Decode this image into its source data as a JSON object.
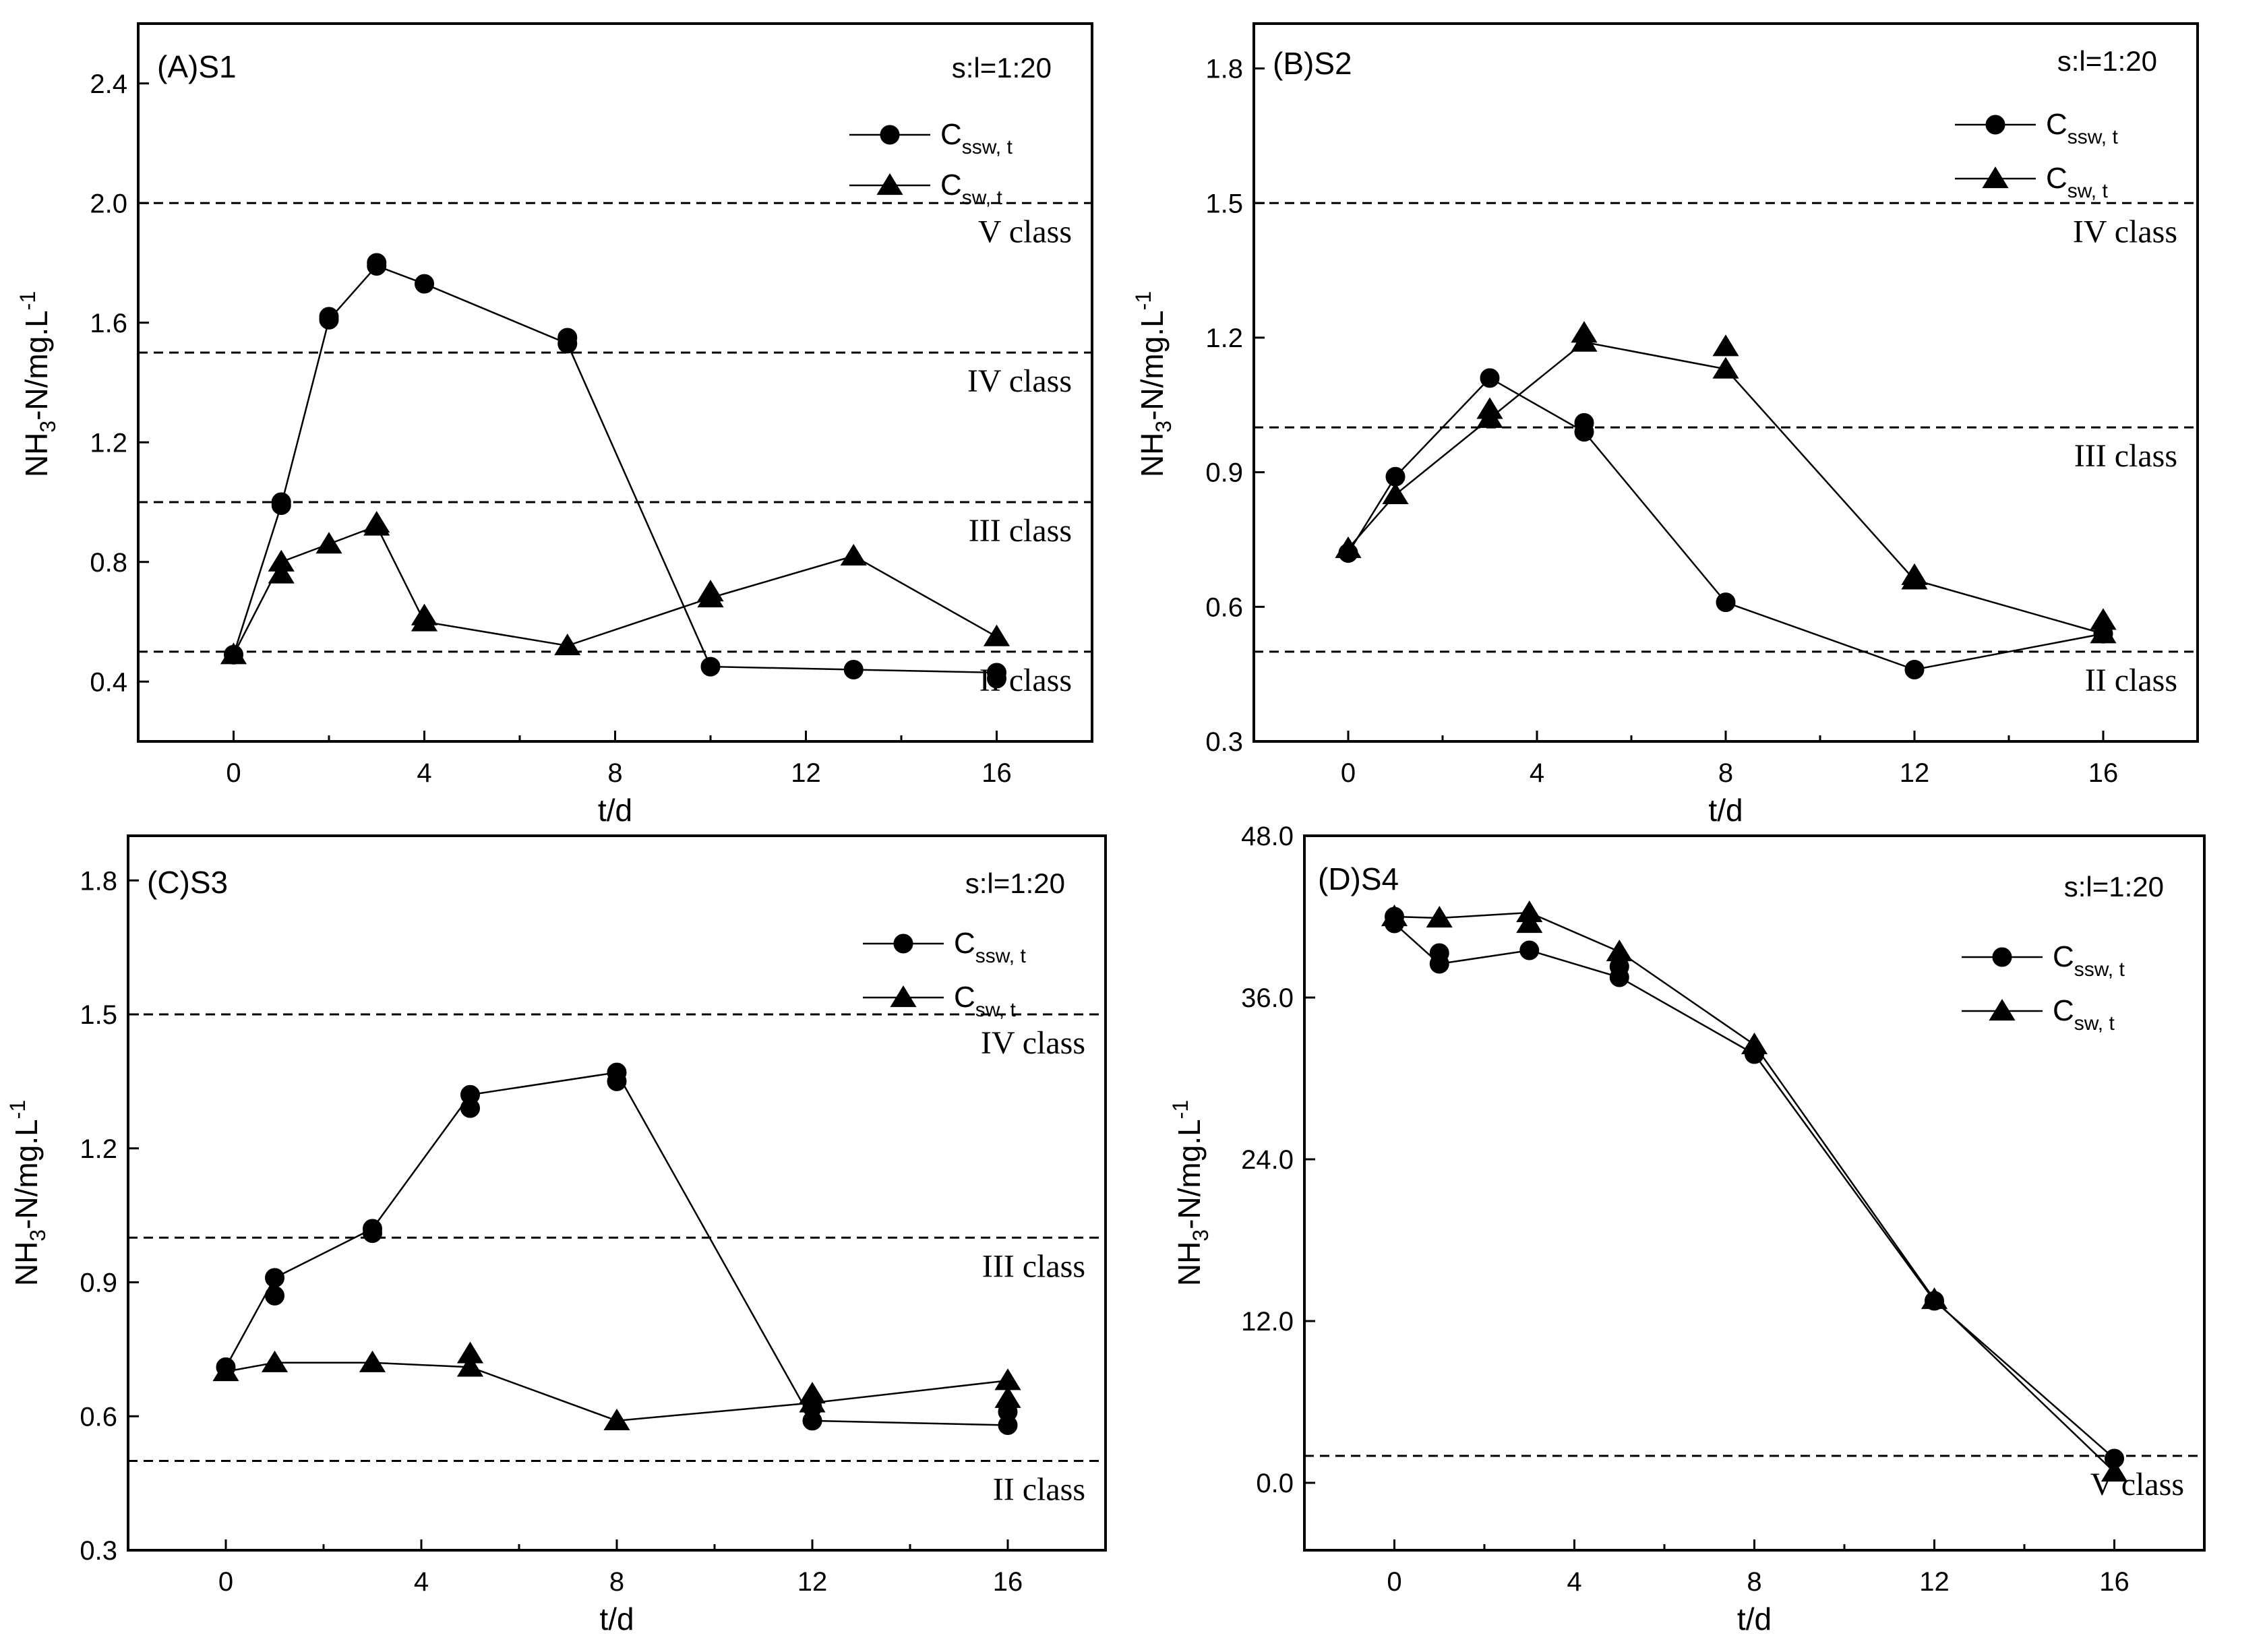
{
  "legend": {
    "ratio": "s:l=1:20",
    "series": [
      {
        "key": "ssw",
        "main": "C",
        "sub": "ssw, t",
        "marker": "circle"
      },
      {
        "key": "sw",
        "main": "C",
        "sub": "sw, t",
        "marker": "triangle"
      }
    ]
  },
  "axis_text": {
    "xlabel": "t/d",
    "ylabel_a": "NH",
    "ylabel_b": "3",
    "ylabel_c": "-N/mg.L",
    "ylabel_d": "-1"
  },
  "chart_data": [
    {
      "id": "A",
      "type": "line",
      "title": "(A)S1",
      "xlim": [
        -2,
        18
      ],
      "ylim": [
        0.2,
        2.6
      ],
      "xticks": [
        0,
        4,
        8,
        12,
        16
      ],
      "yticks": [
        0.4,
        0.8,
        1.2,
        1.6,
        2.0,
        2.4
      ],
      "ytick_labels": [
        "0.4",
        "0.8",
        "1.2",
        "1.6",
        "2.0",
        "2.4"
      ],
      "class_lines": [
        {
          "y": 2.0,
          "label": "V  class"
        },
        {
          "y": 1.5,
          "label": "IV class"
        },
        {
          "y": 1.0,
          "label": "III class"
        },
        {
          "y": 0.5,
          "label": "II  class"
        }
      ],
      "series": [
        {
          "key": "ssw",
          "x": [
            0,
            1,
            2,
            3,
            4,
            7,
            10,
            13,
            16
          ],
          "values": [
            0.49,
            0.99,
            1.61,
            1.79,
            1.73,
            1.53,
            0.45,
            0.44,
            0.43
          ],
          "extra": [
            [
              1,
              1.0
            ],
            [
              2,
              1.62
            ],
            [
              3,
              1.8
            ],
            [
              7,
              1.55
            ],
            [
              16,
              0.41
            ]
          ]
        },
        {
          "key": "sw",
          "x": [
            0,
            1,
            2,
            3,
            4,
            7,
            10,
            13,
            16
          ],
          "values": [
            0.49,
            0.8,
            0.86,
            0.92,
            0.6,
            0.52,
            0.68,
            0.82,
            0.55
          ],
          "extra": [
            [
              1,
              0.76
            ],
            [
              3,
              0.93
            ],
            [
              4,
              0.62
            ],
            [
              10,
              0.7
            ]
          ]
        }
      ]
    },
    {
      "id": "B",
      "type": "line",
      "title": "(B)S2",
      "xlim": [
        -2,
        18
      ],
      "ylim": [
        0.3,
        1.9
      ],
      "xticks": [
        0,
        4,
        8,
        12,
        16
      ],
      "yticks": [
        0.3,
        0.6,
        0.9,
        1.2,
        1.5,
        1.8
      ],
      "ytick_labels": [
        "0.3",
        "0.6",
        "0.9",
        "1.2",
        "1.5",
        "1.8"
      ],
      "class_lines": [
        {
          "y": 1.5,
          "label": "IV class"
        },
        {
          "y": 1.0,
          "label": "III class"
        },
        {
          "y": 0.5,
          "label": "II  class"
        }
      ],
      "series": [
        {
          "key": "ssw",
          "x": [
            0,
            1,
            3,
            5,
            8,
            12,
            16
          ],
          "values": [
            0.72,
            0.89,
            1.11,
            0.99,
            0.61,
            0.46,
            0.54
          ],
          "extra": [
            [
              5,
              1.01
            ]
          ]
        },
        {
          "key": "sw",
          "x": [
            0,
            1,
            3,
            5,
            8,
            12,
            16
          ],
          "values": [
            0.73,
            0.85,
            1.02,
            1.19,
            1.13,
            0.66,
            0.54
          ],
          "extra": [
            [
              3,
              1.04
            ],
            [
              5,
              1.21
            ],
            [
              8,
              1.18
            ],
            [
              16,
              0.57
            ],
            [
              12,
              0.67
            ]
          ]
        }
      ]
    },
    {
      "id": "C",
      "type": "line",
      "title": "(C)S3",
      "xlim": [
        -2,
        18
      ],
      "ylim": [
        0.3,
        1.9
      ],
      "xticks": [
        0,
        4,
        8,
        12,
        16
      ],
      "yticks": [
        0.3,
        0.6,
        0.9,
        1.2,
        1.5,
        1.8
      ],
      "ytick_labels": [
        "0.3",
        "0.6",
        "0.9",
        "1.2",
        "1.5",
        "1.8"
      ],
      "class_lines": [
        {
          "y": 1.5,
          "label": "IV class"
        },
        {
          "y": 1.0,
          "label": "III class"
        },
        {
          "y": 0.5,
          "label": "II  class"
        }
      ],
      "series": [
        {
          "key": "ssw",
          "x": [
            0,
            1,
            3,
            5,
            8,
            12,
            16
          ],
          "values": [
            0.71,
            0.91,
            1.02,
            1.32,
            1.37,
            0.59,
            0.58
          ],
          "extra": [
            [
              1,
              0.87
            ],
            [
              3,
              1.01
            ],
            [
              5,
              1.29
            ],
            [
              8,
              1.35
            ],
            [
              12,
              0.62
            ],
            [
              16,
              0.61
            ]
          ]
        },
        {
          "key": "sw",
          "x": [
            0,
            1,
            3,
            5,
            8,
            12,
            16
          ],
          "values": [
            0.7,
            0.72,
            0.72,
            0.71,
            0.59,
            0.63,
            0.68
          ],
          "extra": [
            [
              5,
              0.74
            ],
            [
              12,
              0.65
            ],
            [
              16,
              0.64
            ]
          ]
        }
      ]
    },
    {
      "id": "D",
      "type": "line",
      "title": "(D)S4",
      "xlim": [
        -2,
        18
      ],
      "ylim": [
        -5,
        48
      ],
      "xticks": [
        0,
        4,
        8,
        12,
        16
      ],
      "yticks": [
        0,
        12,
        24,
        36,
        48
      ],
      "ytick_labels": [
        "0.0",
        "12.0",
        "24.0",
        "36.0",
        "48.0"
      ],
      "class_lines": [
        {
          "y": 2.0,
          "label": "V  class"
        }
      ],
      "series": [
        {
          "key": "ssw",
          "x": [
            0,
            1,
            3,
            5,
            8,
            12,
            16
          ],
          "values": [
            41.5,
            38.5,
            39.5,
            37.5,
            31.8,
            13.5,
            1.8
          ],
          "extra": [
            [
              0,
              42.0
            ],
            [
              1,
              39.3
            ],
            [
              5,
              38.3
            ],
            [
              8,
              32.0
            ]
          ]
        },
        {
          "key": "sw",
          "x": [
            0,
            1,
            3,
            5,
            8,
            12,
            16
          ],
          "values": [
            42.0,
            41.9,
            42.3,
            39.4,
            32.5,
            13.6,
            0.8
          ],
          "extra": [
            [
              3,
              41.5
            ]
          ]
        }
      ]
    }
  ]
}
